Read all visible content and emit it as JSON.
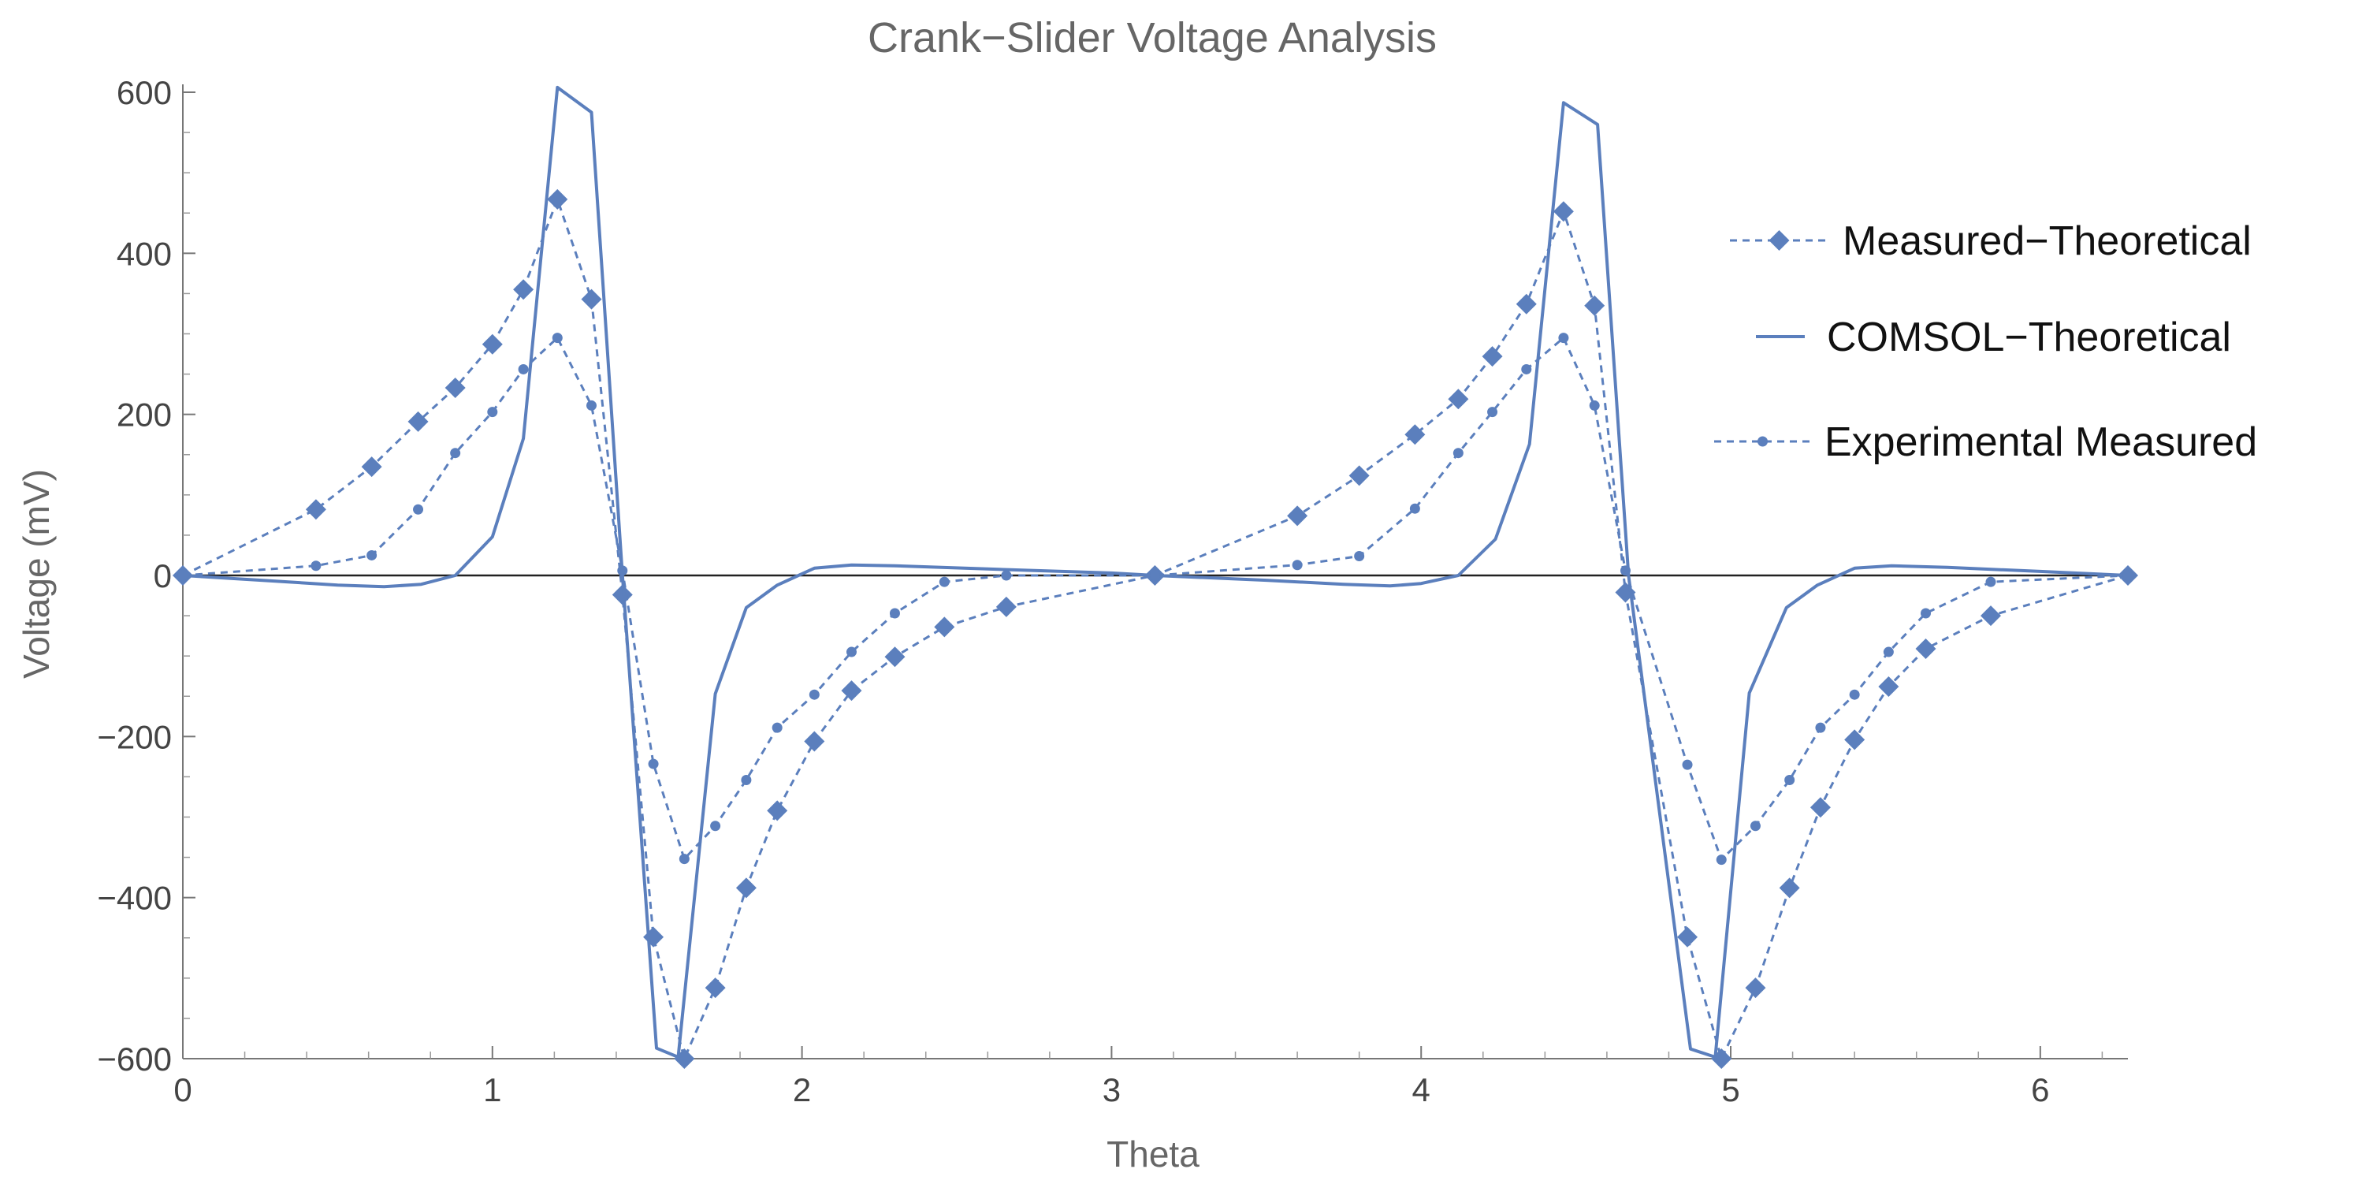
{
  "chart_data": {
    "type": "line",
    "title": "Crank−Slider Voltage Analysis",
    "xlabel": "Theta",
    "ylabel": "Voltage (mV)",
    "xlim": [
      0,
      6.283
    ],
    "ylim": [
      -600,
      600
    ],
    "x_ticks": [
      0,
      1,
      2,
      3,
      4,
      5,
      6
    ],
    "x_tick_labels": [
      "0",
      "1",
      "2",
      "3",
      "4",
      "5",
      "6"
    ],
    "y_ticks": [
      -600,
      -400,
      -200,
      0,
      200,
      400,
      600
    ],
    "y_tick_labels": [
      "−600",
      "−400",
      "−200",
      "0",
      "200",
      "400",
      "600"
    ],
    "grid": false,
    "legend_position": "right",
    "color": "#5b7fbd",
    "series": [
      {
        "name": "Measured−Theoretical",
        "style": "dashed-diamond",
        "points": [
          [
            0,
            0
          ],
          [
            0.43,
            82
          ],
          [
            0.61,
            135
          ],
          [
            0.76,
            191
          ],
          [
            0.88,
            233
          ],
          [
            1.0,
            287
          ],
          [
            1.1,
            355
          ],
          [
            1.21,
            467
          ],
          [
            1.32,
            343
          ],
          [
            1.42,
            -24
          ],
          [
            1.52,
            -449
          ],
          [
            1.62,
            -600
          ],
          [
            1.72,
            -512
          ],
          [
            1.82,
            -388
          ],
          [
            1.92,
            -292
          ],
          [
            2.04,
            -206
          ],
          [
            2.16,
            -143
          ],
          [
            2.3,
            -101
          ],
          [
            2.46,
            -64
          ],
          [
            2.66,
            -39
          ],
          [
            3.14,
            0
          ],
          [
            3.6,
            74
          ],
          [
            3.8,
            124
          ],
          [
            3.98,
            175
          ],
          [
            4.12,
            219
          ],
          [
            4.23,
            272
          ],
          [
            4.34,
            337
          ],
          [
            4.46,
            452
          ],
          [
            4.56,
            335
          ],
          [
            4.66,
            -21
          ],
          [
            4.86,
            -449
          ],
          [
            4.97,
            -600
          ],
          [
            5.08,
            -512
          ],
          [
            5.19,
            -388
          ],
          [
            5.29,
            -288
          ],
          [
            5.4,
            -204
          ],
          [
            5.51,
            -138
          ],
          [
            5.63,
            -91
          ],
          [
            5.84,
            -50
          ],
          [
            6.283,
            0
          ]
        ]
      },
      {
        "name": "COMSOL−Theoretical",
        "style": "solid",
        "points": [
          [
            0,
            0
          ],
          [
            0.3,
            -7
          ],
          [
            0.5,
            -12
          ],
          [
            0.65,
            -14
          ],
          [
            0.77,
            -11
          ],
          [
            0.88,
            0
          ],
          [
            1.0,
            48
          ],
          [
            1.1,
            170
          ],
          [
            1.21,
            606
          ],
          [
            1.32,
            575
          ],
          [
            1.42,
            0
          ],
          [
            1.53,
            -587
          ],
          [
            1.6,
            -598
          ],
          [
            1.72,
            -147
          ],
          [
            1.82,
            -40
          ],
          [
            1.92,
            -12
          ],
          [
            2.04,
            9
          ],
          [
            2.16,
            13
          ],
          [
            2.3,
            12
          ],
          [
            2.6,
            8
          ],
          [
            3.0,
            3
          ],
          [
            3.14,
            0
          ],
          [
            3.5,
            -6
          ],
          [
            3.75,
            -11
          ],
          [
            3.9,
            -13
          ],
          [
            4.0,
            -10
          ],
          [
            4.12,
            0
          ],
          [
            4.24,
            45
          ],
          [
            4.35,
            163
          ],
          [
            4.46,
            587
          ],
          [
            4.57,
            560
          ],
          [
            4.67,
            0
          ],
          [
            4.87,
            -588
          ],
          [
            4.95,
            -598
          ],
          [
            5.06,
            -146
          ],
          [
            5.18,
            -40
          ],
          [
            5.28,
            -12
          ],
          [
            5.4,
            9
          ],
          [
            5.52,
            12
          ],
          [
            5.7,
            10
          ],
          [
            6.0,
            5
          ],
          [
            6.283,
            0
          ]
        ]
      },
      {
        "name": "Experimental Measured",
        "style": "dashed-dot",
        "points": [
          [
            0,
            0
          ],
          [
            0.43,
            12
          ],
          [
            0.61,
            25
          ],
          [
            0.76,
            82
          ],
          [
            0.88,
            152
          ],
          [
            1.0,
            203
          ],
          [
            1.1,
            256
          ],
          [
            1.21,
            295
          ],
          [
            1.32,
            211
          ],
          [
            1.42,
            6
          ],
          [
            1.52,
            -234
          ],
          [
            1.62,
            -352
          ],
          [
            1.72,
            -311
          ],
          [
            1.82,
            -254
          ],
          [
            1.92,
            -189
          ],
          [
            2.04,
            -148
          ],
          [
            2.16,
            -95
          ],
          [
            2.3,
            -47
          ],
          [
            2.46,
            -8
          ],
          [
            2.66,
            0
          ],
          [
            3.14,
            0
          ],
          [
            3.6,
            13
          ],
          [
            3.8,
            24
          ],
          [
            3.98,
            83
          ],
          [
            4.12,
            152
          ],
          [
            4.23,
            203
          ],
          [
            4.34,
            256
          ],
          [
            4.46,
            295
          ],
          [
            4.56,
            211
          ],
          [
            4.66,
            6
          ],
          [
            4.86,
            -235
          ],
          [
            4.97,
            -353
          ],
          [
            5.08,
            -311
          ],
          [
            5.19,
            -254
          ],
          [
            5.29,
            -189
          ],
          [
            5.4,
            -148
          ],
          [
            5.51,
            -95
          ],
          [
            5.63,
            -47
          ],
          [
            5.84,
            -8
          ],
          [
            6.283,
            0
          ]
        ]
      }
    ]
  }
}
